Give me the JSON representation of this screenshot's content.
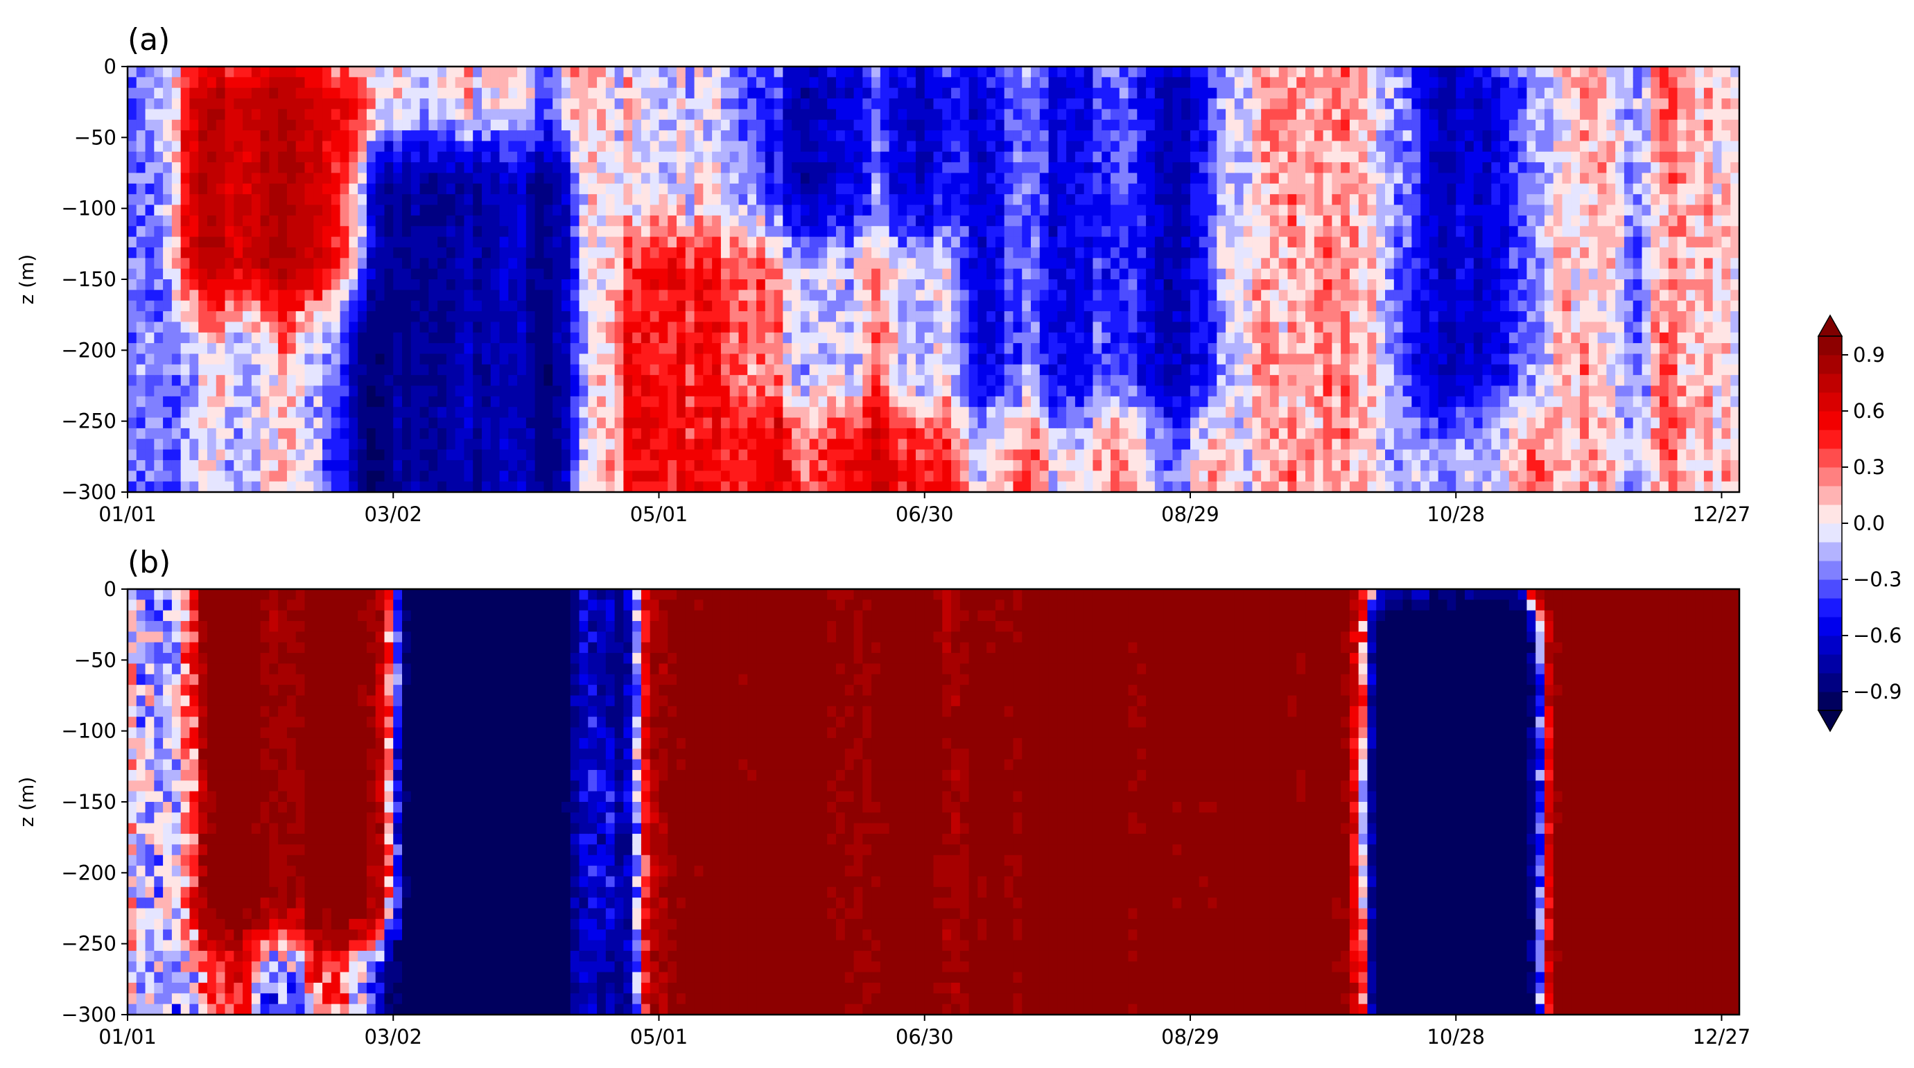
{
  "chart_data": [
    {
      "type": "heatmap",
      "panel_label": "(a)",
      "xlabel": "",
      "ylabel": "z (m)",
      "x_tick_labels": [
        "01/01",
        "03/02",
        "05/01",
        "06/30",
        "08/29",
        "10/28",
        "12/27"
      ],
      "x_tick_day_of_year": [
        1,
        61,
        121,
        181,
        241,
        301,
        361
      ],
      "xlim": [
        1,
        365
      ],
      "ylim": [
        -300,
        0
      ],
      "y_ticks": [
        0,
        -50,
        -100,
        -150,
        -200,
        -250,
        -300
      ],
      "y_tick_labels": [
        "0",
        "−50",
        "−100",
        "−150",
        "−200",
        "−250",
        "−300"
      ],
      "value_range": [
        -1,
        1
      ],
      "features": [
        {
          "day_range": [
            20,
            50
          ],
          "z_range": [
            -120,
            -40
          ],
          "sign": "positive",
          "strength": "strong"
        },
        {
          "day_range": [
            60,
            95
          ],
          "z_range": [
            -300,
            -100
          ],
          "sign": "negative",
          "strength": "strong"
        },
        {
          "day_range": [
            150,
            240
          ],
          "z_range": [
            -200,
            -30
          ],
          "sign": "negative",
          "strength": "moderate"
        },
        {
          "day_range": [
            300,
            315
          ],
          "z_range": [
            -200,
            -30
          ],
          "sign": "negative",
          "strength": "moderate"
        },
        {
          "day_range": [
            120,
            180
          ],
          "z_range": [
            -300,
            -160
          ],
          "sign": "positive",
          "strength": "moderate"
        }
      ]
    },
    {
      "type": "heatmap",
      "panel_label": "(b)",
      "xlabel": "",
      "ylabel": "z (m)",
      "x_tick_labels": [
        "01/01",
        "03/02",
        "05/01",
        "06/30",
        "08/29",
        "10/28",
        "12/27"
      ],
      "x_tick_day_of_year": [
        1,
        61,
        121,
        181,
        241,
        301,
        361
      ],
      "xlim": [
        1,
        365
      ],
      "ylim": [
        -300,
        0
      ],
      "y_ticks": [
        0,
        -50,
        -100,
        -150,
        -200,
        -250,
        -300
      ],
      "y_tick_labels": [
        "0",
        "−50",
        "−100",
        "−150",
        "−200",
        "−250",
        "−300"
      ],
      "value_range": [
        -1,
        1
      ],
      "features": [
        {
          "day_range": [
            25,
            55
          ],
          "z_range": [
            -200,
            0
          ],
          "sign": "positive",
          "strength": "strong"
        },
        {
          "day_range": [
            70,
            108
          ],
          "z_range": [
            -300,
            0
          ],
          "sign": "negative",
          "strength": "saturated"
        },
        {
          "day_range": [
            108,
            270
          ],
          "z_range": [
            -300,
            0
          ],
          "sign": "positive",
          "strength": "strong"
        },
        {
          "day_range": [
            290,
            315
          ],
          "z_range": [
            -300,
            -50
          ],
          "sign": "negative",
          "strength": "saturated"
        },
        {
          "day_range": [
            325,
            365
          ],
          "z_range": [
            -300,
            0
          ],
          "sign": "positive",
          "strength": "saturated"
        }
      ]
    }
  ],
  "colorbar": {
    "tick_values": [
      0.9,
      0.6,
      0.3,
      0.0,
      -0.3,
      -0.6,
      -0.9
    ],
    "tick_labels": [
      "0.9",
      "0.6",
      "0.3",
      "0.0",
      "−0.3",
      "−0.6",
      "−0.9"
    ],
    "range": [
      -1,
      1
    ],
    "extend": "both",
    "levels": 20,
    "colormap": "seismic",
    "color_low": "#00004c",
    "color_mid": "#ffffff",
    "color_high": "#800000"
  }
}
